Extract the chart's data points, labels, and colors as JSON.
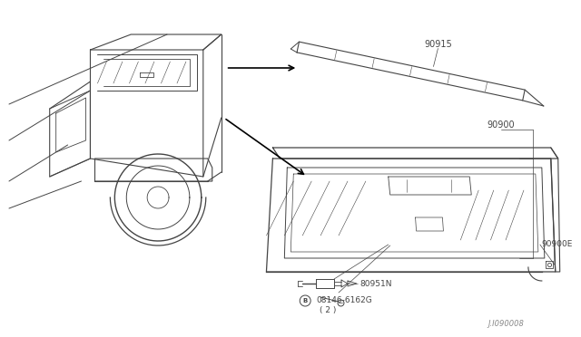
{
  "bg_color": "#ffffff",
  "fig_width": 6.4,
  "fig_height": 3.72,
  "dpi": 100,
  "line_color": "#444444",
  "text_color": "#444444",
  "arrow_color": "#000000",
  "label_90915": "90915",
  "label_90900": "90900",
  "label_90900E": "90900E",
  "label_80951N": "80951N",
  "label_screw": "08146-6162G",
  "label_qty": "( 2 )",
  "label_id": "J.I090008"
}
